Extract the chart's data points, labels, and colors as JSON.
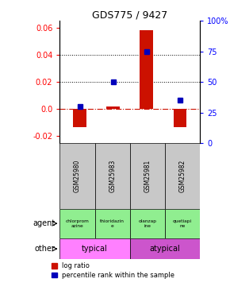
{
  "title": "GDS775 / 9427",
  "samples": [
    "GSM25980",
    "GSM25983",
    "GSM25981",
    "GSM25982"
  ],
  "log_ratios": [
    -0.013,
    0.002,
    0.058,
    -0.013
  ],
  "percentile_rank_values": [
    30,
    50,
    75,
    35
  ],
  "ylim_left": [
    -0.025,
    0.065
  ],
  "ylim_right": [
    0,
    100
  ],
  "y_ticks_left": [
    -0.02,
    0.0,
    0.02,
    0.04,
    0.06
  ],
  "y_ticks_right": [
    0,
    25,
    50,
    75,
    100
  ],
  "hlines_dotted": [
    0.02,
    0.04
  ],
  "hline_dash_dot": 0.0,
  "agents": [
    "chlorprom\nazine",
    "thioridazin\ne",
    "olanzap\nine",
    "quetiapi\nne"
  ],
  "other_groups": [
    [
      "typical",
      2
    ],
    [
      "atypical",
      2
    ]
  ],
  "other_colors": [
    "#FF80FF",
    "#CC55CC"
  ],
  "bar_color": "#CC1100",
  "dot_color": "#0000BB",
  "background_color": "#ffffff",
  "agent_bg": "#90EE90",
  "sample_bg": "#C8C8C8"
}
